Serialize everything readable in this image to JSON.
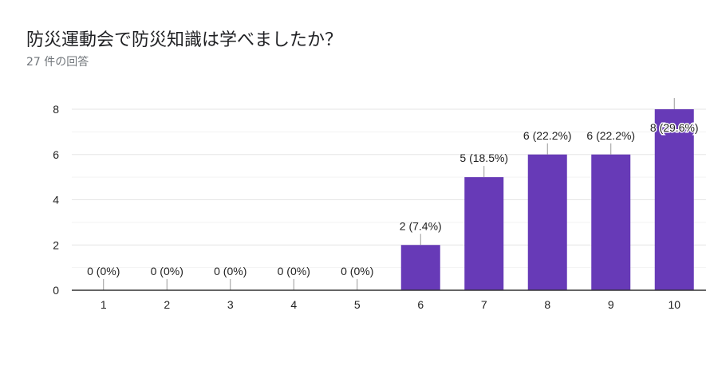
{
  "header": {
    "title": "防災運動会で防災知識は学べましたか？",
    "response_count": "27 件の回答"
  },
  "chart_data": {
    "type": "bar",
    "title": "防災運動会で防災知識は学べましたか？",
    "categories": [
      "1",
      "2",
      "3",
      "4",
      "5",
      "6",
      "7",
      "8",
      "9",
      "10"
    ],
    "values": [
      0,
      0,
      0,
      0,
      0,
      2,
      5,
      6,
      6,
      8
    ],
    "data_labels": [
      "0 (0%)",
      "0 (0%)",
      "0 (0%)",
      "0 (0%)",
      "0 (0%)",
      "2 (7.4%)",
      "5 (18.5%)",
      "6 (22.2%)",
      "6 (22.2%)",
      "8 (29.6%)"
    ],
    "yticks": [
      0,
      2,
      4,
      6,
      8
    ],
    "ylim": [
      0,
      8
    ],
    "xlabel": "",
    "ylabel": "",
    "grid": true,
    "bar_color": "#673ab7"
  }
}
